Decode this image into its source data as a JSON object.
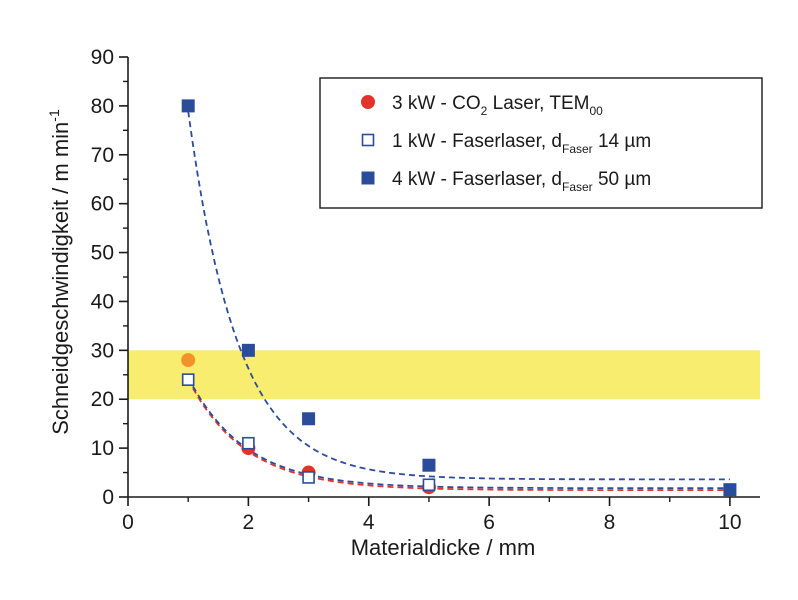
{
  "chart_data": {
    "type": "scatter",
    "title": "",
    "xlabel": "Materialdicke / mm",
    "ylabel": {
      "text": "Schneidgeschwindigkeit / m min",
      "superscript": "-1"
    },
    "xlim": [
      0,
      10.5
    ],
    "ylim": [
      0,
      90
    ],
    "x_ticks": [
      0,
      2,
      4,
      6,
      8,
      10
    ],
    "y_ticks": [
      0,
      10,
      20,
      30,
      40,
      50,
      60,
      70,
      80,
      90
    ],
    "grid": false,
    "legend_position": "top-right",
    "highlight_band": {
      "y_from": 20,
      "y_to": 30,
      "color": "#f7ea55"
    },
    "series": [
      {
        "key": "co2",
        "legend": {
          "pre": "3 kW - CO",
          "sub1": "2",
          "mid": " Laser, TEM",
          "sub2": "00",
          "post": ""
        },
        "marker": "circle-filled",
        "color": "#e3342b",
        "x": [
          1,
          2,
          3,
          5
        ],
        "y": [
          28,
          10,
          5,
          2
        ],
        "point_colors": [
          "#f0932b",
          "#e3342b",
          "#e3342b",
          "#e3342b"
        ],
        "fit": {
          "a": 64.7,
          "b": 1.05,
          "c": 1.4,
          "color": "#e3342b"
        }
      },
      {
        "key": "fiber1",
        "legend": {
          "pre": "1 kW - Faserlaser, d",
          "sub1": "Faser",
          "mid": " 14 µm",
          "sub2": "",
          "post": ""
        },
        "marker": "square-open",
        "color": "#2b4c9b",
        "x": [
          1,
          2,
          3,
          5
        ],
        "y": [
          24,
          11,
          4,
          2.5
        ],
        "fit": {
          "a": 64.7,
          "b": 1.05,
          "c": 1.8,
          "color": "#2b4c9b"
        }
      },
      {
        "key": "fiber4",
        "legend": {
          "pre": "4 kW - Faserlaser, d",
          "sub1": "Faser",
          "mid": " 50 µm",
          "sub2": "",
          "post": ""
        },
        "marker": "square-filled",
        "color": "#2b4c9b",
        "x": [
          1,
          2,
          3,
          5,
          10
        ],
        "y": [
          80,
          30,
          16,
          6.5,
          1.5
        ],
        "fit": {
          "a": 250,
          "b": 1.2,
          "c": 3.6,
          "color": "#2b4c9b"
        }
      }
    ]
  }
}
